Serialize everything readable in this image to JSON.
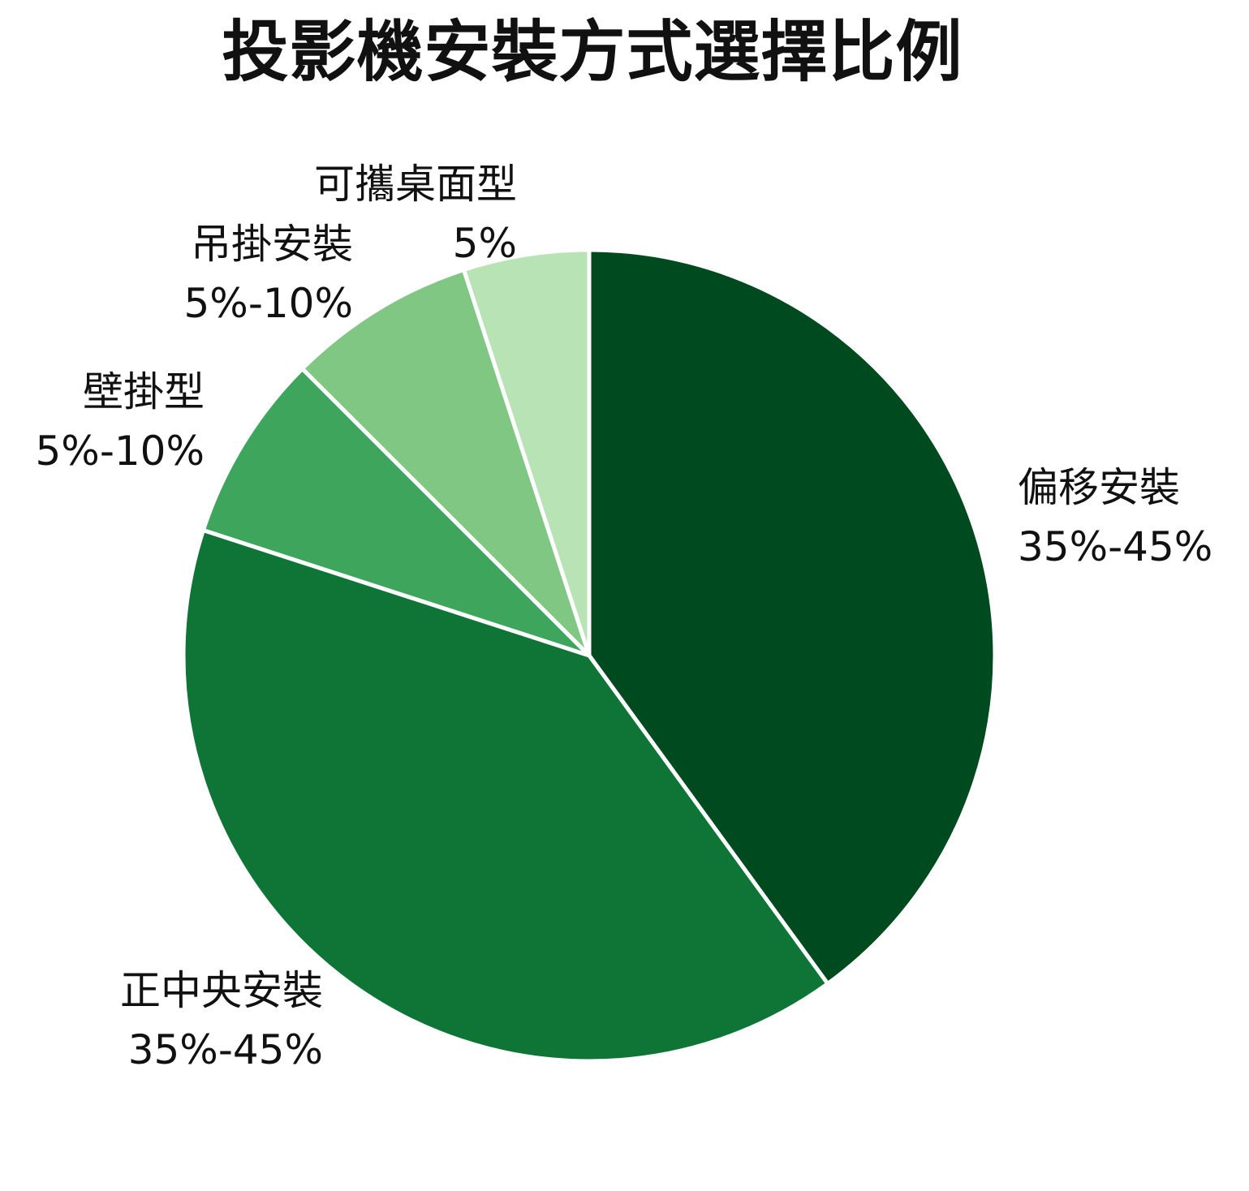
{
  "chart_data": {
    "type": "pie",
    "title": "投影機安裝方式選擇比例",
    "start": "12 o'clock",
    "direction": "clockwise",
    "slices": [
      {
        "label": "偏移安裝",
        "value_text": "35%-45%",
        "value": 40,
        "color": "#004a1f"
      },
      {
        "label": "正中央安裝",
        "value_text": "35%-45%",
        "value": 40,
        "color": "#0f7536"
      },
      {
        "label": "壁掛型",
        "value_text": "5%-10%",
        "value": 7.5,
        "color": "#3ea55c"
      },
      {
        "label": "吊掛安裝",
        "value_text": "5%-10%",
        "value": 7.5,
        "color": "#81c784"
      },
      {
        "label": "可攜桌面型",
        "value_text": "5%",
        "value": 5,
        "color": "#b8e3b4"
      }
    ]
  }
}
